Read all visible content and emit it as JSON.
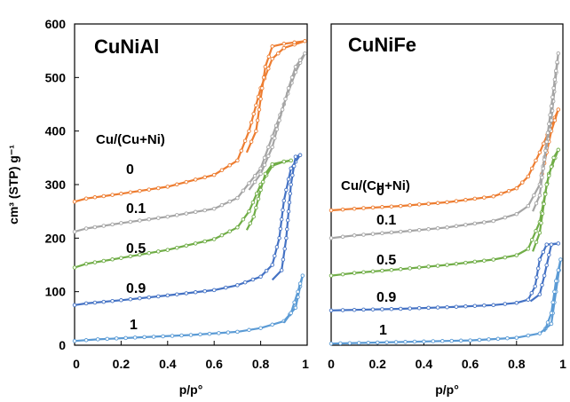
{
  "chart_data": [
    {
      "type": "line",
      "title": "CuNiAl",
      "legend_title": "Cu/(Cu+Ni)",
      "xlabel": "p/p°",
      "ylabel": "cm³ (STP) g⁻¹",
      "xlim": [
        0,
        1
      ],
      "ylim": [
        0,
        600
      ],
      "x_ticks": [
        "0",
        "0.2",
        "0.4",
        "0.6",
        "0.8",
        "1"
      ],
      "y_ticks": [
        "0",
        "100",
        "200",
        "300",
        "400",
        "500",
        "600"
      ],
      "series": [
        {
          "name": "0",
          "color": "#ED7D31",
          "adsorption": [
            [
              0,
              268
            ],
            [
              0.05,
              274
            ],
            [
              0.2,
              283
            ],
            [
              0.4,
              296
            ],
            [
              0.6,
              318
            ],
            [
              0.7,
              345
            ],
            [
              0.75,
              400
            ],
            [
              0.8,
              480
            ],
            [
              0.85,
              535
            ],
            [
              0.9,
              555
            ],
            [
              0.99,
              568
            ]
          ],
          "desorption": [
            [
              0.99,
              568
            ],
            [
              0.9,
              563
            ],
            [
              0.85,
              558
            ],
            [
              0.82,
              520
            ],
            [
              0.8,
              460
            ],
            [
              0.78,
              400
            ],
            [
              0.74,
              360
            ]
          ]
        },
        {
          "name": "0.1",
          "color": "#A5A5A5",
          "adsorption": [
            [
              0,
              212
            ],
            [
              0.05,
              218
            ],
            [
              0.2,
              228
            ],
            [
              0.4,
              240
            ],
            [
              0.6,
              255
            ],
            [
              0.7,
              275
            ],
            [
              0.8,
              330
            ],
            [
              0.85,
              390
            ],
            [
              0.9,
              450
            ],
            [
              0.95,
              510
            ],
            [
              0.99,
              545
            ]
          ],
          "desorption": [
            [
              0.99,
              545
            ],
            [
              0.95,
              520
            ],
            [
              0.92,
              480
            ],
            [
              0.88,
              420
            ],
            [
              0.85,
              370
            ],
            [
              0.8,
              320
            ],
            [
              0.75,
              290
            ]
          ]
        },
        {
          "name": "0.5",
          "color": "#70AD47",
          "adsorption": [
            [
              0,
              145
            ],
            [
              0.05,
              152
            ],
            [
              0.2,
              163
            ],
            [
              0.4,
              178
            ],
            [
              0.6,
              198
            ],
            [
              0.7,
              220
            ],
            [
              0.75,
              250
            ],
            [
              0.8,
              300
            ],
            [
              0.85,
              335
            ],
            [
              0.9,
              343
            ],
            [
              0.93,
              345
            ]
          ],
          "desorption": [
            [
              0.93,
              345
            ],
            [
              0.9,
              343
            ],
            [
              0.85,
              338
            ],
            [
              0.82,
              320
            ],
            [
              0.8,
              290
            ],
            [
              0.77,
              240
            ],
            [
              0.74,
              215
            ]
          ]
        },
        {
          "name": "0.9",
          "color": "#4472C4",
          "adsorption": [
            [
              0,
              75
            ],
            [
              0.05,
              78
            ],
            [
              0.2,
              84
            ],
            [
              0.4,
              93
            ],
            [
              0.6,
              103
            ],
            [
              0.7,
              112
            ],
            [
              0.8,
              128
            ],
            [
              0.85,
              150
            ],
            [
              0.88,
              200
            ],
            [
              0.9,
              270
            ],
            [
              0.93,
              330
            ],
            [
              0.97,
              355
            ]
          ],
          "desorption": [
            [
              0.97,
              355
            ],
            [
              0.95,
              352
            ],
            [
              0.93,
              300
            ],
            [
              0.91,
              200
            ],
            [
              0.89,
              140
            ],
            [
              0.85,
              122
            ]
          ]
        },
        {
          "name": "1",
          "color": "#5B9BD5",
          "adsorption": [
            [
              0,
              8
            ],
            [
              0.1,
              11
            ],
            [
              0.3,
              15
            ],
            [
              0.5,
              19
            ],
            [
              0.7,
              25
            ],
            [
              0.8,
              32
            ],
            [
              0.9,
              45
            ],
            [
              0.95,
              70
            ],
            [
              0.98,
              130
            ]
          ],
          "desorption": [
            [
              0.98,
              130
            ],
            [
              0.96,
              100
            ],
            [
              0.93,
              60
            ],
            [
              0.9,
              42
            ]
          ]
        }
      ]
    },
    {
      "type": "line",
      "title": "CuNiFe",
      "legend_title": "Cu/(Cu+Ni)",
      "xlabel": "p/p°",
      "ylabel": "",
      "xlim": [
        0,
        1
      ],
      "ylim": [
        0,
        600
      ],
      "x_ticks": [
        "0",
        "0.2",
        "0.4",
        "0.6",
        "0.8",
        "1"
      ],
      "y_ticks": [],
      "series": [
        {
          "name": "0",
          "color": "#ED7D31",
          "adsorption": [
            [
              0,
              252
            ],
            [
              0.1,
              255
            ],
            [
              0.3,
              260
            ],
            [
              0.5,
              267
            ],
            [
              0.7,
              278
            ],
            [
              0.8,
              293
            ],
            [
              0.85,
              315
            ],
            [
              0.9,
              360
            ],
            [
              0.95,
              410
            ],
            [
              0.98,
              440
            ]
          ],
          "desorption": [
            [
              0.98,
              440
            ],
            [
              0.95,
              400
            ],
            [
              0.92,
              340
            ],
            [
              0.9,
              300
            ]
          ]
        },
        {
          "name": "0.1",
          "color": "#A5A5A5",
          "adsorption": [
            [
              0,
              200
            ],
            [
              0.1,
              205
            ],
            [
              0.3,
              212
            ],
            [
              0.5,
              220
            ],
            [
              0.7,
              232
            ],
            [
              0.8,
              245
            ],
            [
              0.85,
              260
            ],
            [
              0.9,
              300
            ],
            [
              0.95,
              420
            ],
            [
              0.98,
              545
            ]
          ],
          "desorption": [
            [
              0.98,
              545
            ],
            [
              0.96,
              480
            ],
            [
              0.93,
              380
            ],
            [
              0.9,
              280
            ],
            [
              0.87,
              250
            ]
          ]
        },
        {
          "name": "0.5",
          "color": "#70AD47",
          "adsorption": [
            [
              0,
              130
            ],
            [
              0.1,
              135
            ],
            [
              0.3,
              142
            ],
            [
              0.5,
              150
            ],
            [
              0.7,
              160
            ],
            [
              0.8,
              168
            ],
            [
              0.85,
              180
            ],
            [
              0.9,
              230
            ],
            [
              0.94,
              320
            ],
            [
              0.98,
              365
            ]
          ],
          "desorption": [
            [
              0.98,
              365
            ],
            [
              0.96,
              350
            ],
            [
              0.93,
              300
            ],
            [
              0.9,
              210
            ],
            [
              0.87,
              175
            ]
          ]
        },
        {
          "name": "0.9",
          "color": "#4472C4",
          "adsorption": [
            [
              0,
              65
            ],
            [
              0.1,
              66
            ],
            [
              0.3,
              68
            ],
            [
              0.5,
              71
            ],
            [
              0.7,
              75
            ],
            [
              0.8,
              79
            ],
            [
              0.85,
              85
            ],
            [
              0.88,
              110
            ],
            [
              0.9,
              160
            ],
            [
              0.93,
              188
            ],
            [
              0.98,
              190
            ]
          ],
          "desorption": [
            [
              0.98,
              190
            ],
            [
              0.95,
              188
            ],
            [
              0.92,
              130
            ],
            [
              0.9,
              95
            ],
            [
              0.86,
              82
            ]
          ]
        },
        {
          "name": "1",
          "color": "#5B9BD5",
          "adsorption": [
            [
              0,
              3
            ],
            [
              0.2,
              5
            ],
            [
              0.4,
              7
            ],
            [
              0.6,
              9
            ],
            [
              0.8,
              14
            ],
            [
              0.9,
              22
            ],
            [
              0.95,
              40
            ],
            [
              0.97,
              100
            ],
            [
              0.99,
              160
            ]
          ],
          "desorption": [
            [
              0.99,
              160
            ],
            [
              0.97,
              120
            ],
            [
              0.95,
              60
            ],
            [
              0.92,
              25
            ]
          ]
        }
      ]
    }
  ]
}
